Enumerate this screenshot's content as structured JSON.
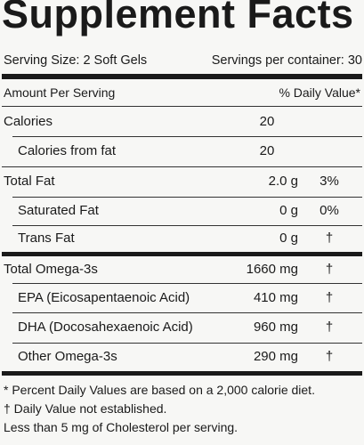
{
  "header": {
    "title": "Supplement Facts",
    "serving_size": "Serving Size: 2 Soft Gels",
    "servings_per_container": "Servings per container: 30"
  },
  "table": {
    "amount_heading": "Amount Per Serving",
    "dv_heading": "% Daily Value*",
    "rows": [
      [
        "Calories",
        "20",
        ""
      ],
      [
        "Calories from fat",
        "20",
        ""
      ],
      [
        "Total Fat",
        "2.0 g",
        "3%"
      ],
      [
        "Saturated Fat",
        "0 g",
        "0%"
      ],
      [
        "Trans Fat",
        "0 g",
        "†"
      ],
      [
        "Total Omega-3s",
        "1660 mg",
        "†"
      ],
      [
        "EPA (Eicosapentaenoic Acid)",
        "410 mg",
        "†"
      ],
      [
        "DHA (Docosahexaenoic Acid)",
        "960 mg",
        "†"
      ],
      [
        "Other Omega-3s",
        "290 mg",
        "†"
      ]
    ]
  },
  "footnotes": [
    "* Percent Daily Values are based on a 2,000 calorie diet.",
    "† Daily Value not established.",
    "Less than 5 mg of Cholesterol per serving."
  ]
}
